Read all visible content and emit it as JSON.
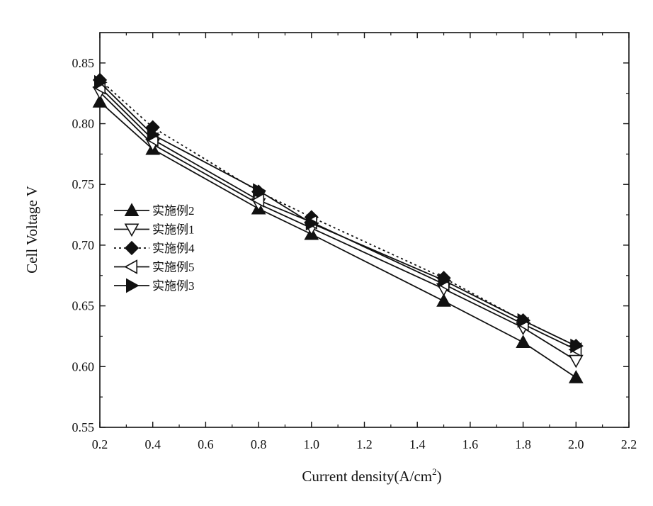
{
  "chart_data": {
    "type": "line",
    "title": "",
    "xlabel": "Current density(A/cm",
    "xlabel_superscript": "2",
    "xlabel_suffix": ")",
    "ylabel": "Cell Voltage V",
    "xlim": [
      0.2,
      2.2
    ],
    "ylim": [
      0.55,
      0.875
    ],
    "xticks": [
      "0.2",
      "0.4",
      "0.6",
      "0.8",
      "1.0",
      "1.2",
      "1.4",
      "1.6",
      "1.8",
      "2.0",
      "2.2"
    ],
    "yticks": [
      "0.55",
      "0.60",
      "0.65",
      "0.70",
      "0.75",
      "0.80",
      "0.85"
    ],
    "grid": false,
    "legend_position": "middle-left",
    "x": [
      0.2,
      0.4,
      0.8,
      1.0,
      1.5,
      1.8,
      2.0
    ],
    "series": [
      {
        "name": "实施例2",
        "marker": "triangle-up",
        "fill": "filled",
        "dash": "solid",
        "values": [
          0.818,
          0.779,
          0.73,
          0.709,
          0.654,
          0.62,
          0.591
        ]
      },
      {
        "name": "实施例1",
        "marker": "triangle-down",
        "fill": "open",
        "dash": "solid",
        "values": [
          0.826,
          0.783,
          0.734,
          0.714,
          0.664,
          0.632,
          0.605
        ]
      },
      {
        "name": "实施例4",
        "marker": "diamond",
        "fill": "filled",
        "dash": "dotted",
        "values": [
          0.836,
          0.797,
          0.744,
          0.723,
          0.673,
          0.638,
          0.617
        ]
      },
      {
        "name": "实施例5",
        "marker": "triangle-left",
        "fill": "open",
        "dash": "solid",
        "values": [
          0.83,
          0.787,
          0.737,
          0.719,
          0.668,
          0.635,
          0.614
        ]
      },
      {
        "name": "实施例3",
        "marker": "triangle-right",
        "fill": "filled",
        "dash": "solid",
        "values": [
          0.834,
          0.791,
          0.745,
          0.718,
          0.671,
          0.638,
          0.617
        ]
      }
    ]
  }
}
